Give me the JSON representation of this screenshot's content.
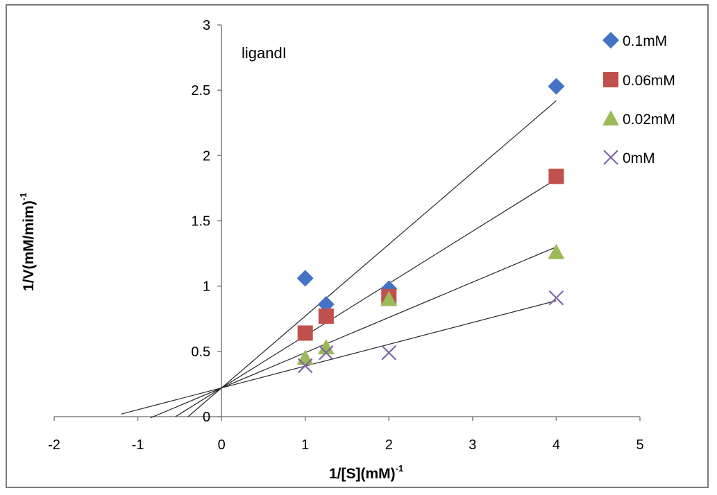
{
  "chart_data": {
    "type": "scatter",
    "title": "ligandI",
    "xlabel": "1/[S](mM)",
    "xlabel_sup": "-1",
    "ylabel": "1/V(mM/mim)",
    "ylabel_sup": "-1",
    "xlim": [
      -2,
      5
    ],
    "ylim": [
      0,
      3
    ],
    "x_ticks": [
      -2,
      -1,
      0,
      1,
      2,
      3,
      4,
      5
    ],
    "y_ticks": [
      0,
      0.5,
      1,
      1.5,
      2,
      2.5,
      3
    ],
    "x_tick_labels": [
      "-2",
      "-1",
      "0",
      "1",
      "2",
      "3",
      "4",
      "5"
    ],
    "y_tick_labels": [
      "0",
      "0.5",
      "1",
      "1.5",
      "2",
      "2.5",
      "3"
    ],
    "legend_position": "right",
    "series": [
      {
        "name": "0.1mM",
        "marker": "diamond",
        "color": "#4472C4",
        "x": [
          1,
          1.25,
          2,
          4
        ],
        "y": [
          1.06,
          0.86,
          0.98,
          2.53
        ],
        "trendline": {
          "slope": 0.55,
          "intercept": 0.22,
          "x_start": -0.4,
          "x_end": 4
        }
      },
      {
        "name": "0.06mM",
        "marker": "square",
        "color": "#C0504D",
        "x": [
          1,
          1.25,
          2,
          4
        ],
        "y": [
          0.64,
          0.77,
          0.92,
          1.84
        ],
        "trendline": {
          "slope": 0.4,
          "intercept": 0.22,
          "x_start": -0.55,
          "x_end": 4
        }
      },
      {
        "name": "0.02mM",
        "marker": "triangle",
        "color": "#9BBB59",
        "x": [
          1,
          1.25,
          2,
          4
        ],
        "y": [
          0.45,
          0.53,
          0.9,
          1.26
        ],
        "trendline": {
          "slope": 0.27,
          "intercept": 0.22,
          "x_start": -0.85,
          "x_end": 4
        }
      },
      {
        "name": "0mM",
        "marker": "x",
        "color": "#8064A2",
        "x": [
          1,
          1.25,
          2,
          4
        ],
        "y": [
          0.39,
          0.49,
          0.49,
          0.91
        ],
        "trendline": {
          "slope": 0.167,
          "intercept": 0.22,
          "x_start": -1.2,
          "x_end": 4
        }
      }
    ]
  }
}
